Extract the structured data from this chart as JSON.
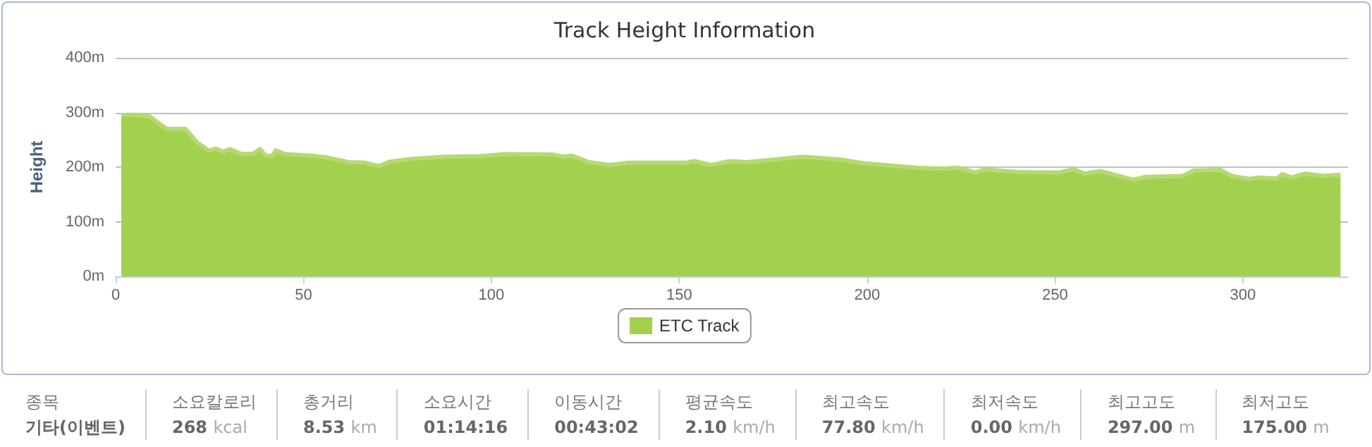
{
  "chart_data": {
    "type": "area",
    "title": "Track Height Information",
    "ylabel": "Height",
    "x": [
      1.5,
      4,
      9,
      13.5,
      18.6,
      21.7,
      24.8,
      26.7,
      28.6,
      30.5,
      33.6,
      36.7,
      38.4,
      39.9,
      41.7,
      42.6,
      45,
      52,
      55.9,
      62,
      66.5,
      70,
      73,
      78.6,
      87.7,
      97,
      104,
      116.5,
      119,
      121.5,
      126,
      131.5,
      136.5,
      151.7,
      154,
      158.5,
      163.5,
      168,
      174,
      182.8,
      192.9,
      199,
      207.9,
      212.9,
      220,
      224,
      229,
      231,
      240,
      251,
      255,
      258,
      262,
      270.8,
      274,
      284,
      287,
      294,
      297,
      302,
      304,
      309,
      310.5,
      313,
      316.5,
      321.5,
      326
    ],
    "series": [
      {
        "name": "ETC Track",
        "color": "#a3d14f",
        "values": [
          295,
          296,
          293,
          270,
          270,
          245,
          230,
          234,
          228,
          233,
          224,
          225,
          233,
          221,
          220,
          231,
          224,
          221,
          218,
          209,
          208,
          202,
          210,
          215,
          219,
          220,
          224,
          223,
          219,
          221,
          209,
          204,
          208,
          208,
          211,
          204,
          211,
          209,
          213,
          219,
          214,
          207,
          202,
          199,
          197,
          199,
          190,
          196,
          191,
          190,
          196,
          188,
          193,
          177,
          182,
          184,
          194,
          195,
          184,
          178,
          181,
          179,
          187,
          181,
          188,
          184,
          186
        ]
      }
    ],
    "xlim": [
      0,
      328
    ],
    "xticks": [
      0,
      50,
      100,
      150,
      200,
      250,
      300
    ],
    "ylim": [
      0,
      400
    ],
    "yticks": [
      {
        "value": 0,
        "label": "0m"
      },
      {
        "value": 100,
        "label": "100m"
      },
      {
        "value": 200,
        "label": "200m"
      },
      {
        "value": 300,
        "label": "300m"
      },
      {
        "value": 400,
        "label": "400m"
      }
    ],
    "grid": "y",
    "legend": "bottom",
    "marker": "none",
    "annotations": [
      "종목\n기타(이벤트)",
      "소요칼로리\n268 kcal",
      "총거리\n8.53 km",
      "소요시간\n01:14:16",
      "이동시간\n00:43:02",
      "평균속도\n2.10 km/h",
      "최고속도\n77.80 km/h",
      "최저속도\n0.00 km/h",
      "최고고도\n297.00 m",
      "최저고도\n175.00 m"
    ]
  }
}
